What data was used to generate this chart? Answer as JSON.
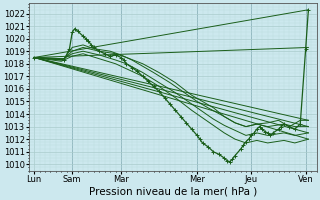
{
  "bg_color": "#cce8ee",
  "grid_color_major": "#aacccc",
  "grid_color_minor": "#bbdddd",
  "line_color": "#1a5e1a",
  "ylim": [
    1009.5,
    1022.8
  ],
  "yticks": [
    1010,
    1011,
    1012,
    1013,
    1014,
    1015,
    1016,
    1017,
    1018,
    1019,
    1020,
    1021,
    1022
  ],
  "xlabel": "Pression niveau de la mer( hPa )",
  "xtick_labels": [
    "Lun",
    "Sam",
    "Mar",
    "Mer",
    "Jeu",
    "Ven"
  ],
  "xtick_positions": [
    0,
    0.7,
    1.6,
    3.0,
    4.0,
    5.0
  ],
  "xlim": [
    -0.1,
    5.2
  ],
  "vlines": [
    0.7,
    1.6,
    3.0,
    4.0,
    5.0
  ],
  "vline_color": "#447799",
  "series": [
    {
      "x": [
        0.0,
        0.55,
        0.65,
        0.7,
        0.75,
        0.8,
        0.9,
        0.95,
        1.0,
        1.05,
        1.1,
        1.2,
        1.3,
        1.4,
        1.5,
        1.6,
        1.65,
        1.7,
        1.8,
        1.9,
        2.0,
        2.1,
        2.2,
        2.3,
        2.4,
        2.5,
        2.6,
        2.7,
        2.8,
        2.9,
        3.0,
        3.05,
        3.1,
        3.2,
        3.3,
        3.4,
        3.5,
        3.55,
        3.6,
        3.65,
        3.7,
        3.8,
        3.85,
        3.9,
        3.95,
        4.0,
        4.05,
        4.1,
        4.15,
        4.2,
        4.25,
        4.3,
        4.35,
        4.4,
        4.5,
        4.55,
        4.6,
        4.7,
        4.8,
        4.9,
        5.0,
        5.05
      ],
      "y": [
        1018.5,
        1018.3,
        1019.2,
        1020.5,
        1020.8,
        1020.6,
        1020.2,
        1020.0,
        1019.8,
        1019.5,
        1019.3,
        1019.0,
        1018.8,
        1018.6,
        1018.7,
        1018.5,
        1018.3,
        1018.0,
        1017.7,
        1017.4,
        1017.0,
        1016.6,
        1016.2,
        1015.8,
        1015.3,
        1014.8,
        1014.3,
        1013.8,
        1013.3,
        1012.8,
        1012.3,
        1012.0,
        1011.7,
        1011.4,
        1011.0,
        1010.8,
        1010.5,
        1010.3,
        1010.2,
        1010.4,
        1010.7,
        1011.2,
        1011.5,
        1011.8,
        1012.0,
        1012.3,
        1012.5,
        1012.8,
        1013.0,
        1012.8,
        1012.6,
        1012.5,
        1012.3,
        1012.5,
        1012.8,
        1013.0,
        1013.2,
        1013.0,
        1012.8,
        1013.2,
        1019.2,
        1022.3
      ],
      "with_markers": true,
      "lw": 0.9
    },
    {
      "x": [
        0.0,
        5.05
      ],
      "y": [
        1018.5,
        1022.3
      ],
      "with_markers": false,
      "lw": 0.7
    },
    {
      "x": [
        0.0,
        5.05
      ],
      "y": [
        1018.5,
        1019.3
      ],
      "with_markers": false,
      "lw": 0.7
    },
    {
      "x": [
        0.0,
        5.05
      ],
      "y": [
        1018.5,
        1013.5
      ],
      "with_markers": false,
      "lw": 0.7
    },
    {
      "x": [
        0.0,
        5.05
      ],
      "y": [
        1018.5,
        1012.5
      ],
      "with_markers": false,
      "lw": 0.7
    },
    {
      "x": [
        0.0,
        5.05
      ],
      "y": [
        1018.5,
        1012.0
      ],
      "with_markers": false,
      "lw": 0.7
    },
    {
      "x": [
        0.0,
        5.05
      ],
      "y": [
        1018.5,
        1013.0
      ],
      "with_markers": false,
      "lw": 0.7
    },
    {
      "x": [
        0.0,
        0.55,
        0.7,
        0.9,
        1.1,
        1.4,
        1.6,
        1.8,
        2.0,
        2.2,
        2.5,
        2.8,
        3.0,
        3.2,
        3.5,
        3.7,
        3.9,
        4.1,
        4.3,
        4.5,
        4.7,
        4.9,
        5.05
      ],
      "y": [
        1018.5,
        1018.4,
        1019.3,
        1019.5,
        1019.2,
        1019.0,
        1018.7,
        1018.3,
        1017.8,
        1017.3,
        1016.5,
        1015.6,
        1015.0,
        1014.5,
        1013.8,
        1013.3,
        1013.0,
        1013.2,
        1013.3,
        1013.5,
        1013.0,
        1013.5,
        1013.5
      ],
      "with_markers": false,
      "lw": 0.7
    },
    {
      "x": [
        0.0,
        0.55,
        0.7,
        0.9,
        1.2,
        1.5,
        1.7,
        2.0,
        2.3,
        2.6,
        2.9,
        3.1,
        3.3,
        3.5,
        3.7,
        3.9,
        4.1,
        4.3,
        4.6,
        4.8,
        5.05
      ],
      "y": [
        1018.5,
        1018.4,
        1019.0,
        1019.3,
        1019.0,
        1018.8,
        1018.5,
        1018.0,
        1017.3,
        1016.5,
        1015.5,
        1015.0,
        1014.5,
        1013.8,
        1013.3,
        1013.0,
        1013.2,
        1013.0,
        1013.2,
        1013.0,
        1013.0
      ],
      "with_markers": false,
      "lw": 0.7
    },
    {
      "x": [
        0.0,
        0.5,
        0.7,
        0.9,
        1.2,
        1.5,
        1.7,
        2.0,
        2.3,
        2.6,
        2.9,
        3.1,
        3.3,
        3.5,
        3.7,
        3.9,
        4.1,
        4.3,
        4.6,
        4.8,
        5.05
      ],
      "y": [
        1018.5,
        1018.3,
        1018.8,
        1019.0,
        1018.7,
        1018.3,
        1018.0,
        1017.3,
        1016.5,
        1015.7,
        1014.8,
        1014.2,
        1013.6,
        1013.1,
        1012.7,
        1012.3,
        1012.5,
        1012.3,
        1012.5,
        1012.3,
        1012.5
      ],
      "with_markers": false,
      "lw": 0.7
    },
    {
      "x": [
        0.0,
        0.5,
        0.7,
        0.9,
        1.2,
        1.5,
        1.7,
        2.0,
        2.3,
        2.6,
        2.9,
        3.1,
        3.3,
        3.5,
        3.7,
        3.9,
        4.1,
        4.3,
        4.6,
        4.8,
        5.05
      ],
      "y": [
        1018.5,
        1018.2,
        1018.6,
        1018.8,
        1018.4,
        1018.0,
        1017.6,
        1017.0,
        1016.2,
        1015.3,
        1014.3,
        1013.7,
        1013.1,
        1012.5,
        1012.0,
        1011.7,
        1011.9,
        1011.7,
        1011.9,
        1011.7,
        1012.0
      ],
      "with_markers": false,
      "lw": 0.7
    }
  ],
  "ylabel_fontsize": 6.5,
  "xlabel_fontsize": 7.5,
  "tick_fontsize": 6.0
}
